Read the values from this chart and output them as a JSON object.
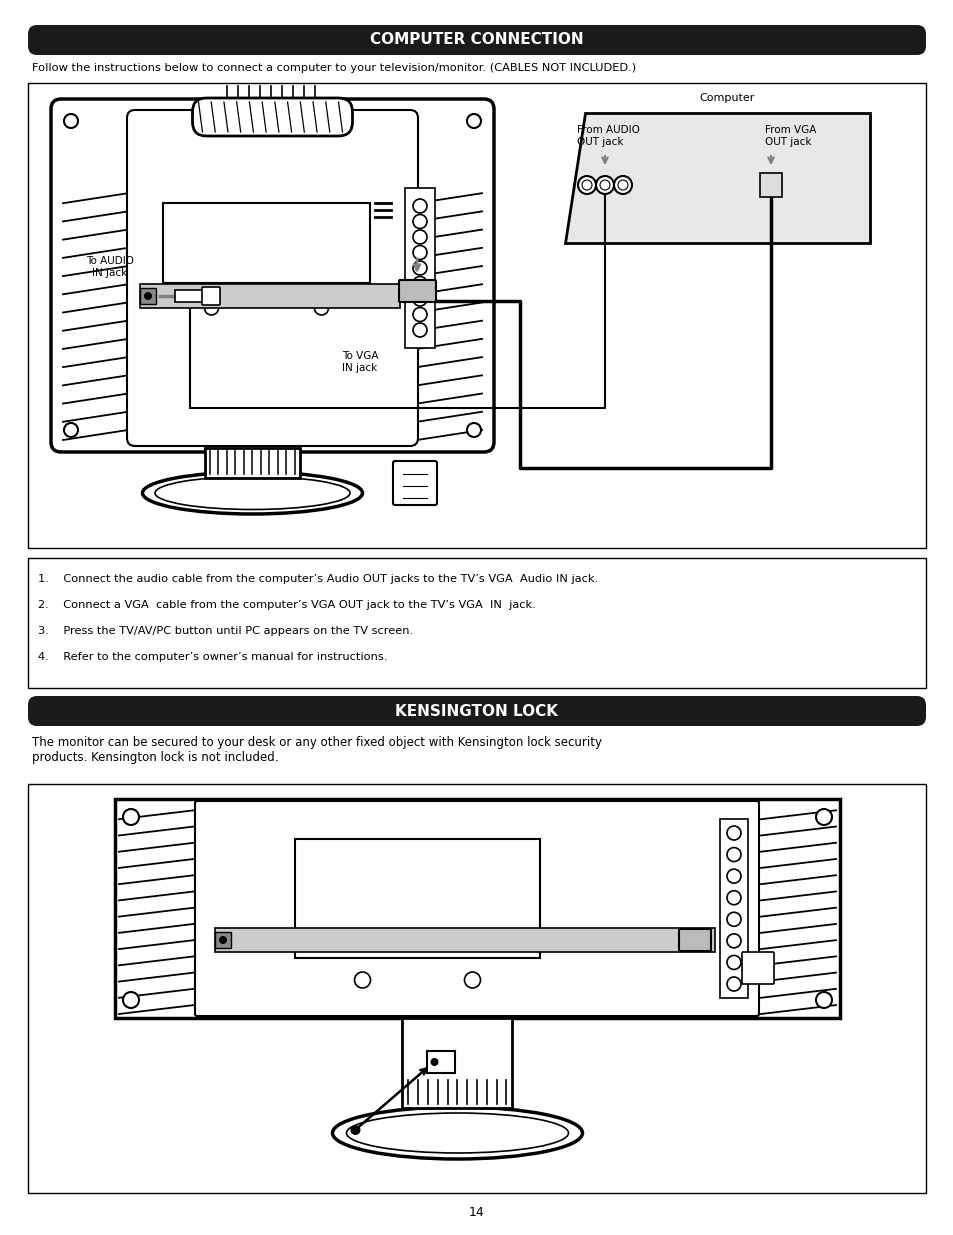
{
  "title1": "COMPUTER CONNECTION",
  "subtitle1": "Follow the instructions below to connect a computer to your television/monitor. (CABLES NOT INCLUDED.)",
  "title2": "KENSINGTON LOCK",
  "subtitle2": "The monitor can be secured to your desk or any other fixed object with Kensington lock security\nproducts. Kensington lock is not included.",
  "instructions": [
    "1.    Connect the audio cable from the computer’s Audio OUT jacks to the TV’s VGA  Audio IN jack.",
    "2.    Connect a VGA  cable from the computer’s VGA OUT jack to the TV’s VGA  IN  jack.",
    "3.    Press the TV/AV/PC button until PC appears on the TV screen.",
    "4.    Refer to the computer’s owner’s manual for instructions."
  ],
  "page_number": "14",
  "bg_color": "#ffffff",
  "header_bg": "#1a1a1a",
  "header_text_color": "#ffffff",
  "body_text_color": "#000000"
}
